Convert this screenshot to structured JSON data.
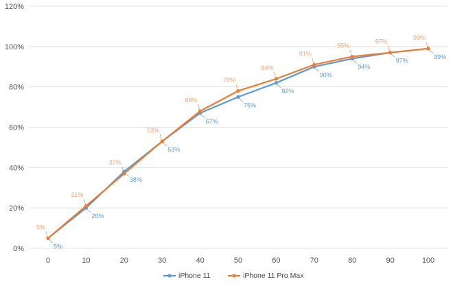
{
  "chart_data": {
    "type": "line",
    "title": "",
    "xlabel": "",
    "ylabel": "",
    "x": [
      0,
      10,
      20,
      30,
      40,
      50,
      60,
      70,
      80,
      90,
      100
    ],
    "x_tick_labels": [
      "0",
      "10",
      "20",
      "30",
      "40",
      "50",
      "60",
      "70",
      "80",
      "90",
      "100"
    ],
    "ylim": [
      0,
      120
    ],
    "y_ticks": [
      0,
      20,
      40,
      60,
      80,
      100,
      120
    ],
    "y_tick_labels": [
      "0%",
      "20%",
      "40%",
      "60%",
      "80%",
      "100%",
      "120%"
    ],
    "grid": true,
    "legend_position": "bottom",
    "series": [
      {
        "name": "iPhone 11",
        "color": "#5b9bd5",
        "values": [
          5,
          20,
          38,
          53,
          67,
          75,
          82,
          90,
          94,
          97,
          99
        ],
        "labels": [
          "5%",
          "20%",
          "38%",
          "53%",
          "67%",
          "75%",
          "82%",
          "90%",
          "94%",
          "97%",
          "99%"
        ]
      },
      {
        "name": "iPhone 11 Pro Max",
        "color": "#ed7d31",
        "values": [
          5,
          21,
          37,
          53,
          68,
          78,
          84,
          91,
          95,
          97,
          99
        ],
        "labels": [
          "5%",
          "21%",
          "37%",
          "53%",
          "68%",
          "78%",
          "84%",
          "91%",
          "95%",
          "97%",
          "99%"
        ]
      }
    ]
  }
}
